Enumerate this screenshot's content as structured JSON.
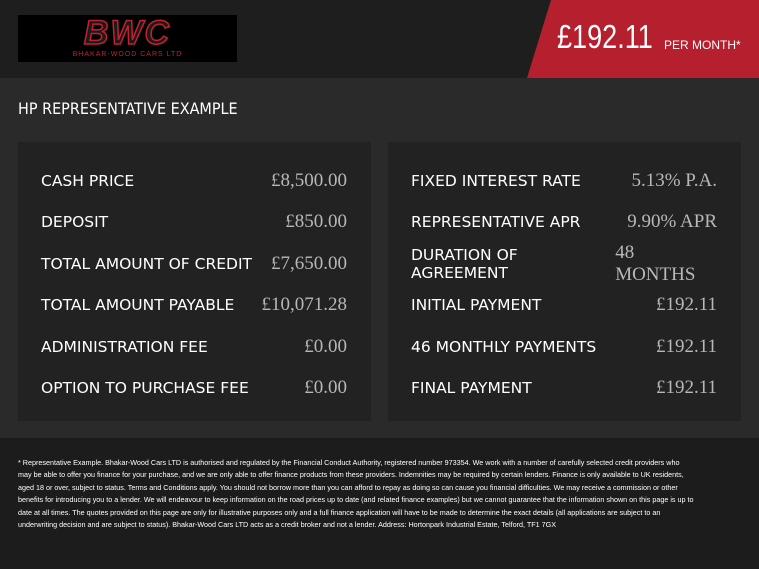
{
  "header": {
    "logo_mark": "BWC",
    "logo_name": "BHAKAR-WOOD CARS LTD",
    "price": "£192.11",
    "price_suffix": "PER MONTH*"
  },
  "section_title": "HP REPRESENTATIVE EXAMPLE",
  "left_panel": {
    "rows": [
      [
        "CASH PRICE",
        "£8,500.00"
      ],
      [
        "DEPOSIT",
        "£850.00"
      ],
      [
        "TOTAL AMOUNT OF CREDIT",
        "£7,650.00"
      ],
      [
        "TOTAL AMOUNT PAYABLE",
        "£10,071.28"
      ],
      [
        "ADMINISTRATION FEE",
        "£0.00"
      ],
      [
        "OPTION TO PURCHASE FEE",
        "£0.00"
      ]
    ]
  },
  "right_panel": {
    "rows": [
      [
        "FIXED INTEREST RATE",
        "5.13% P.A."
      ],
      [
        "REPRESENTATIVE APR",
        "9.90% APR"
      ],
      [
        "DURATION OF AGREEMENT",
        "48 MONTHS"
      ],
      [
        "INITIAL PAYMENT",
        "£192.11"
      ],
      [
        "46 MONTHLY PAYMENTS",
        "£192.11"
      ],
      [
        "FINAL PAYMENT",
        "£192.11"
      ]
    ]
  },
  "disclaimer": "* Representative Example. Bhakar-Wood Cars LTD is authorised and regulated by the Financial Conduct Authority, registered number 973354. We work with a number of carefully selected credit providers who may be able to offer you finance for your purchase, and we are only able to offer finance products from these providers. Indemnities may be required by certain lenders. Finance is only available to UK residents, aged 18 or over, subject to status. Terms and Conditions apply. You should not borrow more than you can afford to repay as doing so can cause you financial difficulties. We may receive a commission or other benefits for introducing you to a lender. We will endeavour to keep information on the road prices up to date (and related finance examples) but we cannot guarantee that the information shown on this page is up to date at all times. The quotes provided on this page are only for illustrative purposes only and a full finance application will have to be made to determine the exact details (all applications are subject to an underwriting decision and are subject to status). Bhakar-Wood Cars LTD acts as a credit broker and not a lender. Address: Hortonpark Industrial Estate, Telford, TF1 7GX"
}
